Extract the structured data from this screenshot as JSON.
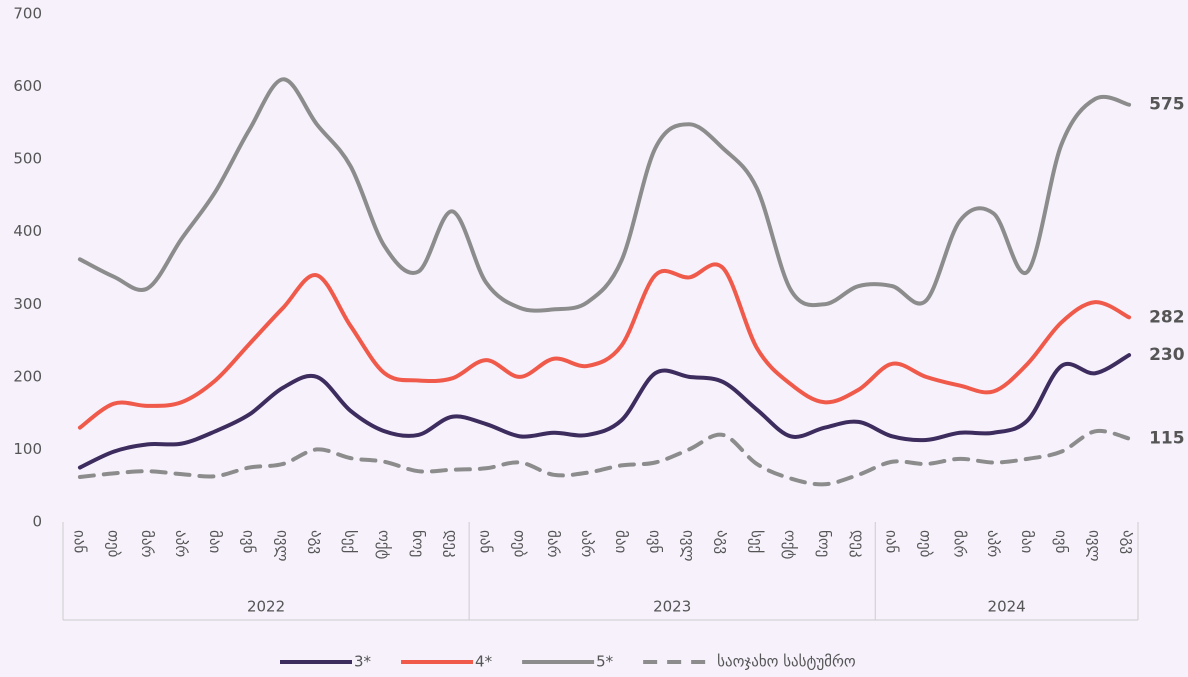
{
  "chart_data": {
    "type": "line",
    "groups": [
      {
        "name": "2022",
        "categories": [
          "იან",
          "თებ",
          "მარ",
          "აპრ",
          "მაი",
          "ივნ",
          "ივლ",
          "აგვ",
          "სექ",
          "ოქტ",
          "ნოე",
          "დეკ"
        ]
      },
      {
        "name": "2023",
        "categories": [
          "იან",
          "თებ",
          "მარ",
          "აპრ",
          "მაი",
          "ივნ",
          "ივლ",
          "აგვ",
          "სექ",
          "ოქტ",
          "ნოე",
          "დეკ"
        ]
      },
      {
        "name": "2024",
        "categories": [
          "იან",
          "თებ",
          "მარ",
          "აპრ",
          "მაი",
          "ივნ",
          "ივლ",
          "აგვ"
        ]
      }
    ],
    "series": [
      {
        "name": "3*",
        "color": "#3d2c5e",
        "dashed": false,
        "values": [
          75,
          97,
          107,
          108,
          125,
          148,
          185,
          200,
          153,
          125,
          120,
          145,
          135,
          118,
          123,
          120,
          140,
          205,
          200,
          193,
          155,
          118,
          130,
          138,
          118,
          113,
          123,
          123,
          140,
          215,
          205,
          230
        ]
      },
      {
        "name": "4*",
        "color": "#f05a4a",
        "dashed": false,
        "values": [
          130,
          163,
          160,
          165,
          195,
          245,
          295,
          340,
          270,
          205,
          195,
          198,
          223,
          200,
          225,
          215,
          243,
          340,
          337,
          350,
          240,
          190,
          165,
          182,
          218,
          200,
          188,
          180,
          218,
          275,
          303,
          282
        ]
      },
      {
        "name": "5*",
        "color": "#8c8c8c",
        "dashed": false,
        "values": [
          362,
          338,
          322,
          390,
          455,
          540,
          610,
          548,
          490,
          380,
          345,
          428,
          330,
          295,
          293,
          303,
          360,
          515,
          548,
          515,
          460,
          320,
          300,
          325,
          325,
          305,
          415,
          425,
          345,
          520,
          583,
          575
        ]
      },
      {
        "name": "საოჯახო სასტუმრო",
        "color": "#8c8c8c",
        "dashed": true,
        "values": [
          62,
          67,
          70,
          66,
          63,
          75,
          80,
          100,
          88,
          83,
          70,
          72,
          74,
          82,
          65,
          68,
          78,
          82,
          100,
          120,
          80,
          60,
          52,
          65,
          83,
          80,
          87,
          82,
          87,
          97,
          125,
          115
        ]
      }
    ],
    "ylim": [
      0,
      700
    ],
    "yticks": [
      0,
      100,
      200,
      300,
      400,
      500,
      600,
      700
    ],
    "grid": false,
    "end_labels": true,
    "legend": "bottom"
  }
}
